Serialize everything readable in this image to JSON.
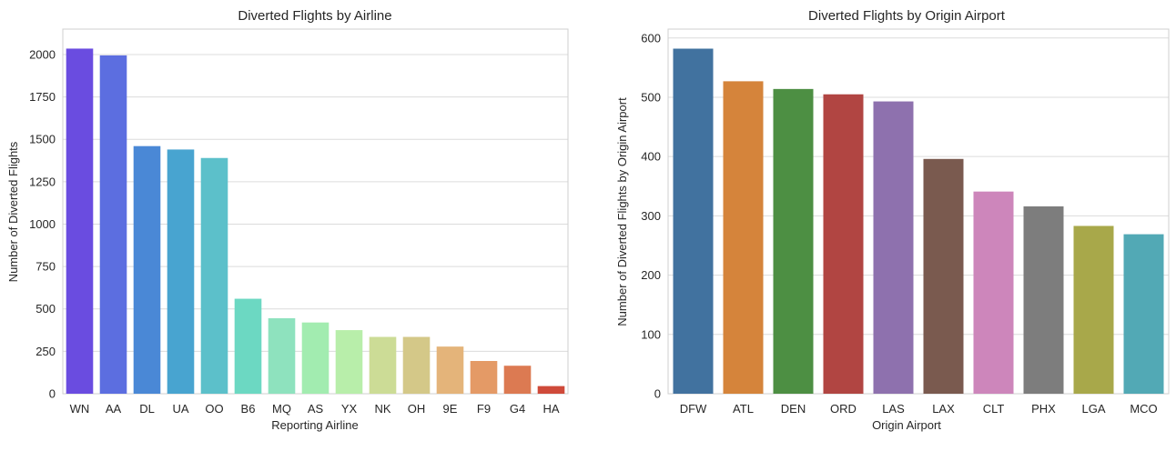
{
  "chart_data": [
    {
      "type": "bar",
      "title": "Diverted Flights by Airline",
      "xlabel": "Reporting Airline",
      "ylabel": "Number of Diverted Flights",
      "ylim": [
        0,
        2150
      ],
      "yticks": [
        0,
        250,
        500,
        750,
        1000,
        1250,
        1500,
        1750,
        2000
      ],
      "grid": "y",
      "categories": [
        "WN",
        "AA",
        "DL",
        "UA",
        "OO",
        "B6",
        "MQ",
        "AS",
        "YX",
        "NK",
        "OH",
        "9E",
        "F9",
        "G4",
        "HA"
      ],
      "values": [
        2035,
        1995,
        1460,
        1440,
        1390,
        560,
        445,
        420,
        375,
        335,
        335,
        278,
        193,
        165,
        45
      ],
      "colors": [
        "#6a4ce0",
        "#5c6ee0",
        "#4a88d6",
        "#48a4d0",
        "#5cc0ca",
        "#6cd8c2",
        "#8ee2be",
        "#a2ecb0",
        "#b8eeaa",
        "#ccdc96",
        "#d4c888",
        "#e4b47a",
        "#e49a66",
        "#dc7a52",
        "#cf4a3a"
      ]
    },
    {
      "type": "bar",
      "title": "Diverted Flights by Origin Airport",
      "xlabel": "Origin Airport",
      "ylabel": "Number of Diverted Flights by Origin Airport",
      "ylim": [
        0,
        615
      ],
      "yticks": [
        0,
        100,
        200,
        300,
        400,
        500,
        600
      ],
      "grid": "y",
      "categories": [
        "DFW",
        "ATL",
        "DEN",
        "ORD",
        "LAS",
        "LAX",
        "CLT",
        "PHX",
        "LGA",
        "MCO"
      ],
      "values": [
        582,
        527,
        514,
        505,
        493,
        396,
        341,
        316,
        283,
        269
      ],
      "colors": [
        "#41729f",
        "#d5843b",
        "#4d8f43",
        "#b14542",
        "#8e71ae",
        "#7a5a4f",
        "#cd86bb",
        "#7d7d7d",
        "#a8a84a",
        "#52a9b5"
      ]
    }
  ]
}
